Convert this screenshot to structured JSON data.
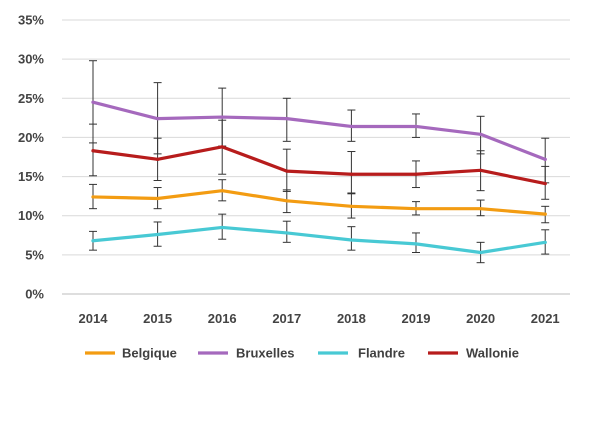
{
  "chart_data": {
    "type": "line",
    "categories": [
      "2014",
      "2015",
      "2016",
      "2017",
      "2018",
      "2019",
      "2020",
      "2021"
    ],
    "ylim": [
      0,
      35
    ],
    "yticks": [
      0,
      5,
      10,
      15,
      20,
      25,
      30,
      35
    ],
    "ytick_labels": [
      "0%",
      "5%",
      "10%",
      "15%",
      "20%",
      "25%",
      "30%",
      "35%"
    ],
    "grid": "horizontal",
    "error_bars": true,
    "legend_position": "bottom",
    "series": [
      {
        "name": "Belgique",
        "color": "#f39c12",
        "values": [
          12.4,
          12.2,
          13.2,
          11.9,
          11.2,
          10.9,
          10.9,
          10.2
        ],
        "errors": [
          [
            10.9,
            14.0
          ],
          [
            10.9,
            13.6
          ],
          [
            11.9,
            14.6
          ],
          [
            10.4,
            13.3
          ],
          [
            9.7,
            12.8
          ],
          [
            10.1,
            11.8
          ],
          [
            10.0,
            12.0
          ],
          [
            9.1,
            11.2
          ]
        ]
      },
      {
        "name": "Bruxelles",
        "color": "#a569bd",
        "values": [
          24.5,
          22.4,
          22.6,
          22.4,
          21.4,
          21.4,
          20.4,
          17.2
        ],
        "errors": [
          [
            19.3,
            29.8
          ],
          [
            17.9,
            27.0
          ],
          [
            18.9,
            26.3
          ],
          [
            19.5,
            25.0
          ],
          [
            19.5,
            23.5
          ],
          [
            20.0,
            23.0
          ],
          [
            17.9,
            22.7
          ],
          [
            14.2,
            19.9
          ]
        ]
      },
      {
        "name": "Flandre",
        "color": "#48c9d4",
        "values": [
          6.8,
          7.6,
          8.5,
          7.8,
          6.9,
          6.4,
          5.3,
          6.6
        ],
        "errors": [
          [
            5.6,
            8.0
          ],
          [
            6.1,
            9.2
          ],
          [
            7.0,
            10.2
          ],
          [
            6.6,
            9.3
          ],
          [
            5.6,
            8.6
          ],
          [
            5.3,
            7.8
          ],
          [
            4.0,
            6.6
          ],
          [
            5.1,
            8.2
          ]
        ]
      },
      {
        "name": "Wallonie",
        "color": "#b71c1c",
        "values": [
          18.3,
          17.2,
          18.8,
          15.7,
          15.3,
          15.3,
          15.8,
          14.1
        ],
        "errors": [
          [
            15.1,
            21.7
          ],
          [
            14.5,
            19.9
          ],
          [
            15.3,
            22.2
          ],
          [
            13.1,
            18.5
          ],
          [
            12.9,
            18.2
          ],
          [
            13.6,
            17.0
          ],
          [
            13.2,
            18.3
          ],
          [
            12.1,
            16.3
          ]
        ]
      }
    ]
  }
}
